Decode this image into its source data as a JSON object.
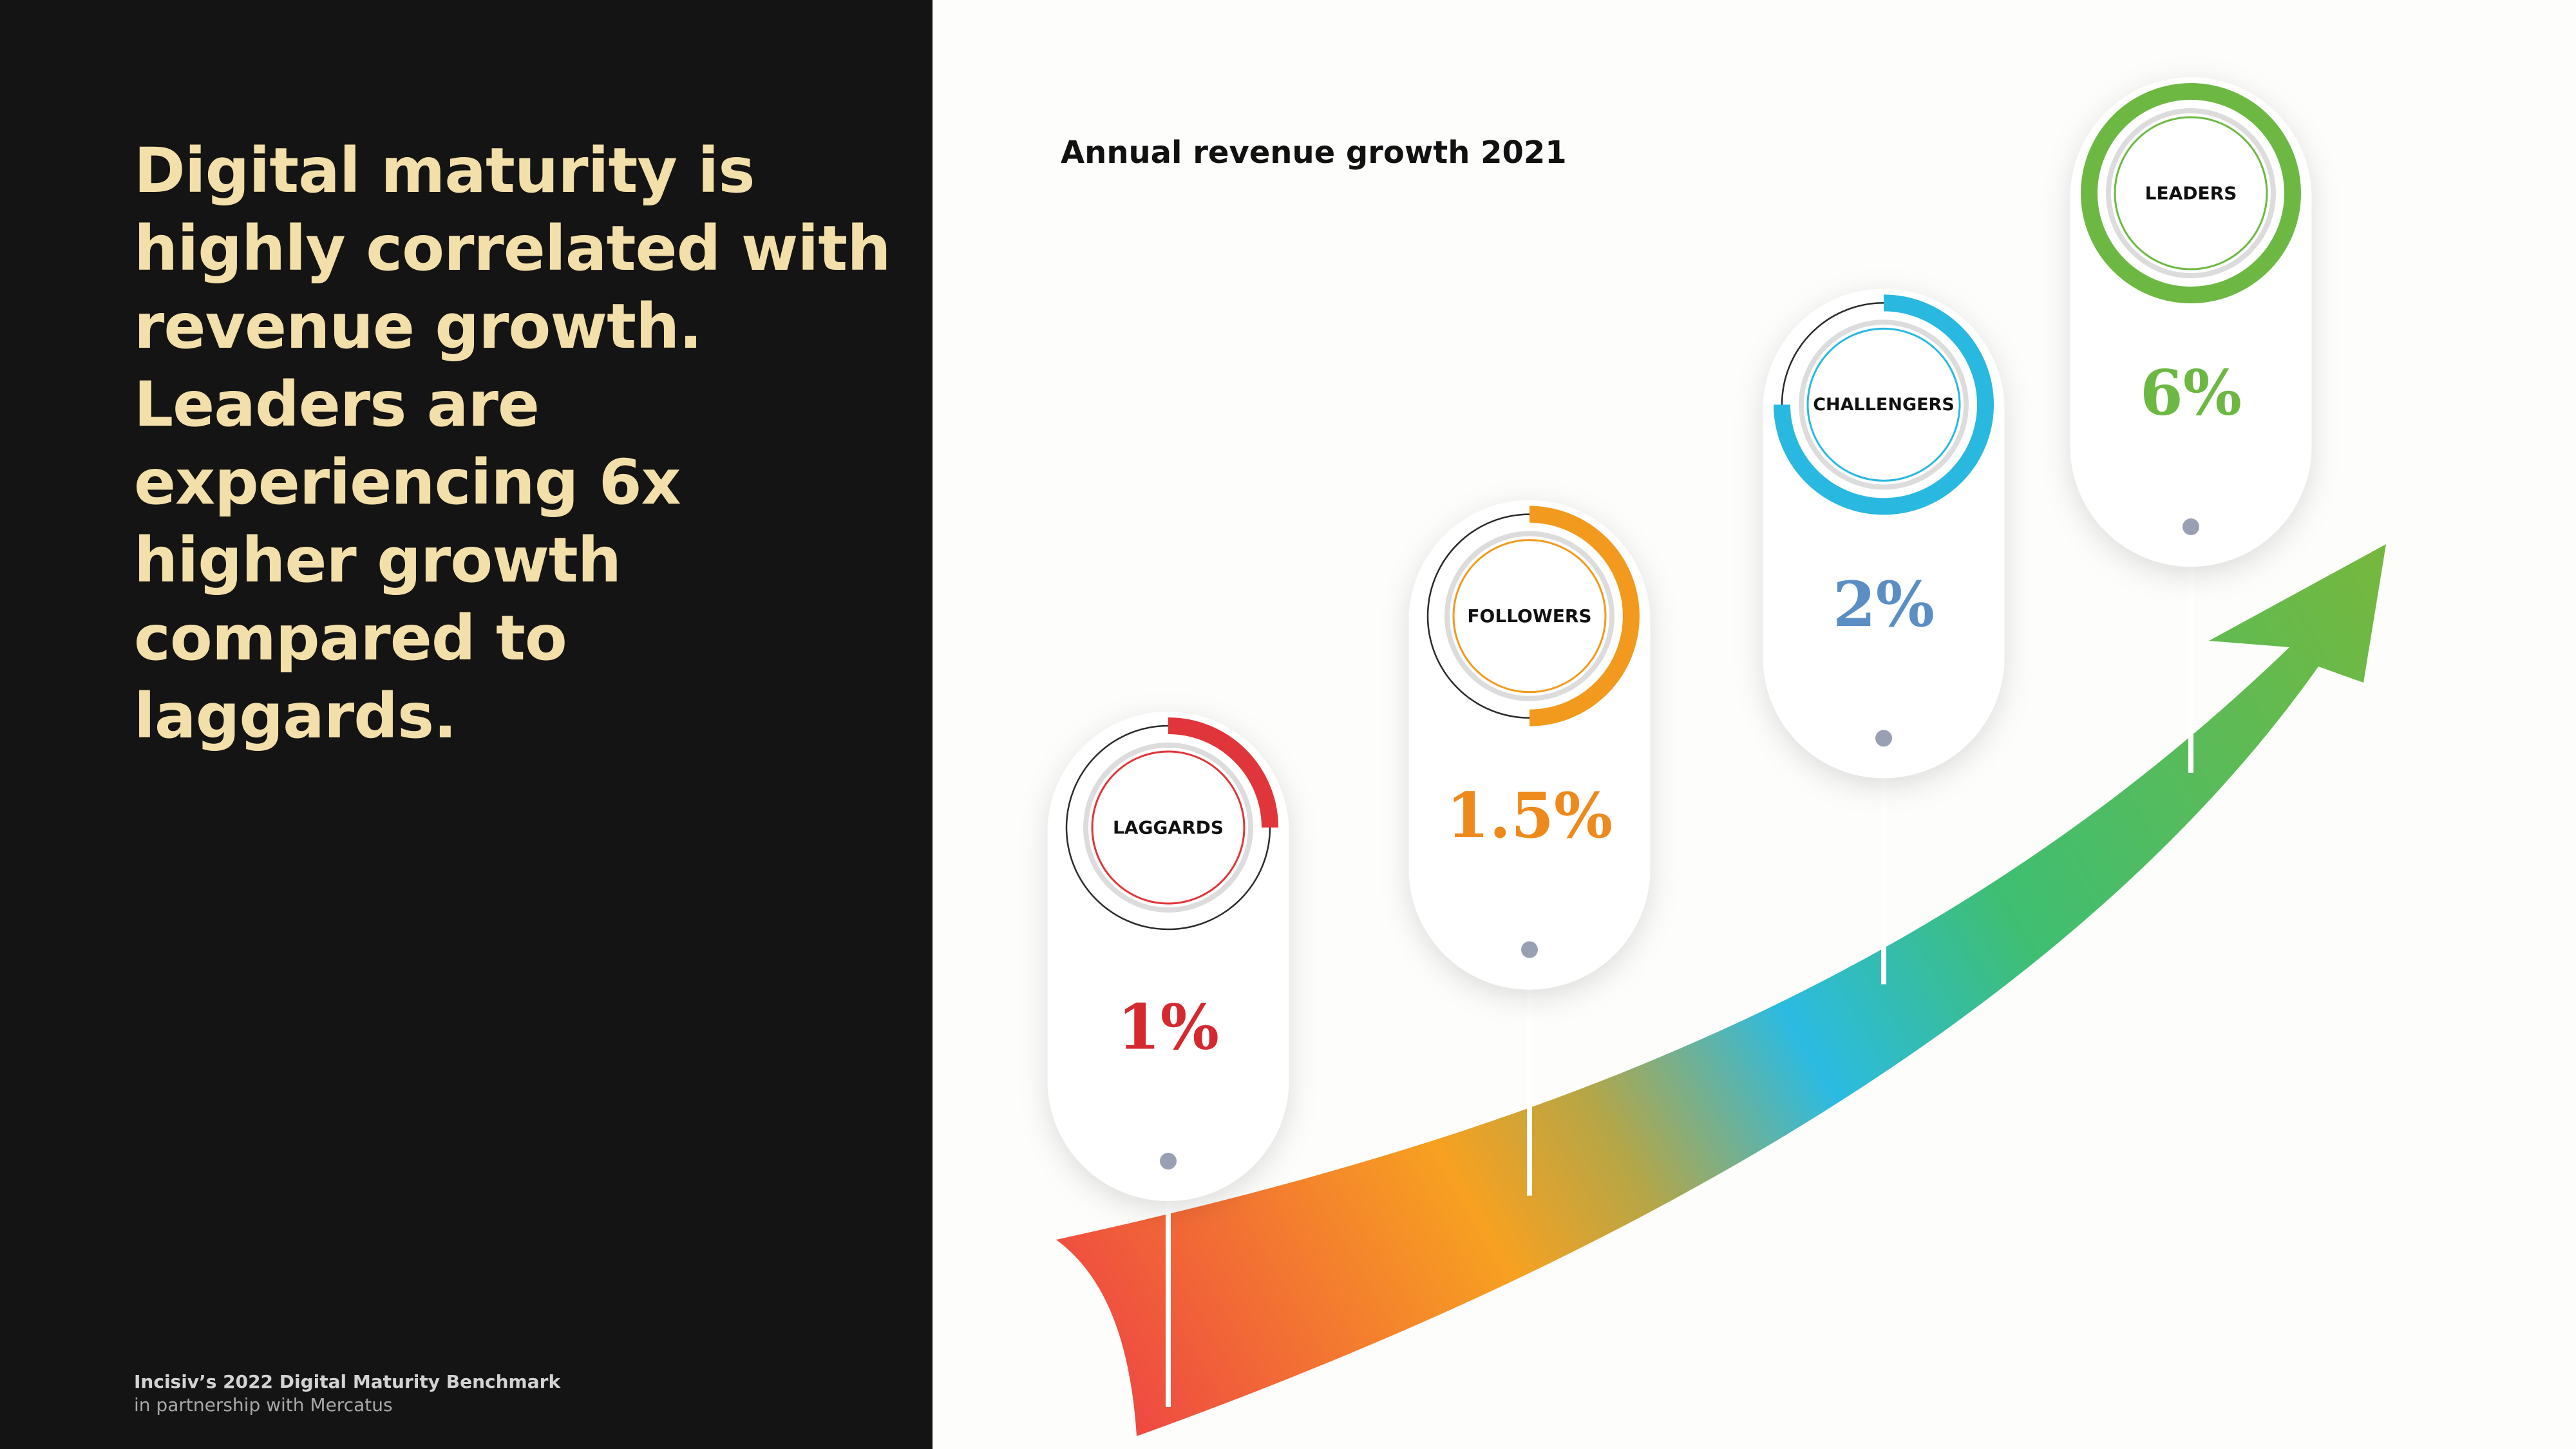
{
  "headline": "Digital maturity is highly correlated with revenue growth. Leaders are experiencing 6x higher growth compared to laggards.",
  "footer": {
    "title": "Incisiv’s 2022 Digital Maturity Benchmark",
    "subtitle": "in partnership with Mercatus"
  },
  "chart_data": {
    "type": "bar",
    "title": "Annual revenue growth 2021",
    "xlabel": "",
    "ylabel": "",
    "ylim": [
      0,
      6
    ],
    "unit": "%",
    "categories": [
      "LAGGARDS",
      "FOLLOWERS",
      "CHALLENGERS",
      "LEADERS"
    ],
    "values": [
      1,
      1.5,
      2,
      6
    ],
    "value_labels": [
      "1%",
      "1.5%",
      "2%",
      "6%"
    ],
    "ring_fill_fraction": [
      0.25,
      0.5,
      0.75,
      1.0
    ],
    "colors": [
      "#e0353a",
      "#f29a1e",
      "#29b8e0",
      "#6db843"
    ],
    "value_text_colors": [
      "#d42a2f",
      "#ee8a1c",
      "#5b8ec4",
      "#6db843"
    ]
  }
}
